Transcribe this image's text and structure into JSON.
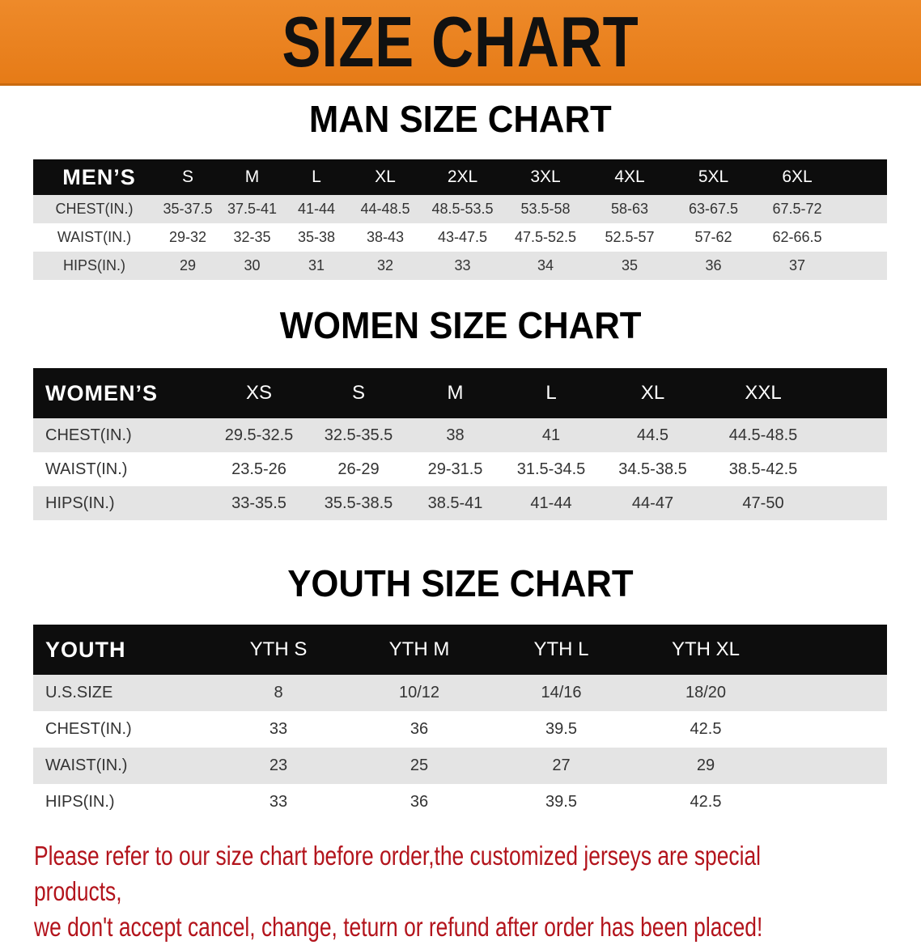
{
  "title": "SIZE CHART",
  "colors": {
    "banner": "#e98220",
    "header_row": "#0d0d0d",
    "stripe": "#e4e4e4",
    "note": "#b3141c"
  },
  "men": {
    "title": "MAN SIZE CHART",
    "header": [
      "MEN’S",
      "S",
      "M",
      "L",
      "XL",
      "2XL",
      "3XL",
      "4XL",
      "5XL",
      "6XL"
    ],
    "rows": [
      [
        "CHEST(IN.)",
        "35-37.5",
        "37.5-41",
        "41-44",
        "44-48.5",
        "48.5-53.5",
        "53.5-58",
        "58-63",
        "63-67.5",
        "67.5-72"
      ],
      [
        "WAIST(IN.)",
        "29-32",
        "32-35",
        "35-38",
        "38-43",
        "43-47.5",
        "47.5-52.5",
        "52.5-57",
        "57-62",
        "62-66.5"
      ],
      [
        "HIPS(IN.)",
        "29",
        "30",
        "31",
        "32",
        "33",
        "34",
        "35",
        "36",
        "37"
      ]
    ]
  },
  "women": {
    "title": "WOMEN SIZE CHART",
    "header": [
      "WOMEN’S",
      "XS",
      "S",
      "M",
      "L",
      "XL",
      "XXL"
    ],
    "rows": [
      [
        "CHEST(IN.)",
        "29.5-32.5",
        "32.5-35.5",
        "38",
        "41",
        "44.5",
        "44.5-48.5"
      ],
      [
        "WAIST(IN.)",
        "23.5-26",
        "26-29",
        "29-31.5",
        "31.5-34.5",
        "34.5-38.5",
        "38.5-42.5"
      ],
      [
        "HIPS(IN.)",
        "33-35.5",
        "35.5-38.5",
        "38.5-41",
        "41-44",
        "44-47",
        "47-50"
      ]
    ]
  },
  "youth": {
    "title": "YOUTH SIZE CHART",
    "header": [
      "YOUTH",
      "YTH S",
      "YTH M",
      "YTH L",
      "YTH XL"
    ],
    "rows": [
      [
        "U.S.SIZE",
        "8",
        "10/12",
        "14/16",
        "18/20"
      ],
      [
        "CHEST(IN.)",
        "33",
        "36",
        "39.5",
        "42.5"
      ],
      [
        "WAIST(IN.)",
        "23",
        "25",
        "27",
        "29"
      ],
      [
        "HIPS(IN.)",
        "33",
        "36",
        "39.5",
        "42.5"
      ]
    ]
  },
  "note": [
    "Please refer to our size chart before order,the customized jerseys are special products,",
    "we don't accept cancel, change, teturn or refund after order has been placed!"
  ]
}
